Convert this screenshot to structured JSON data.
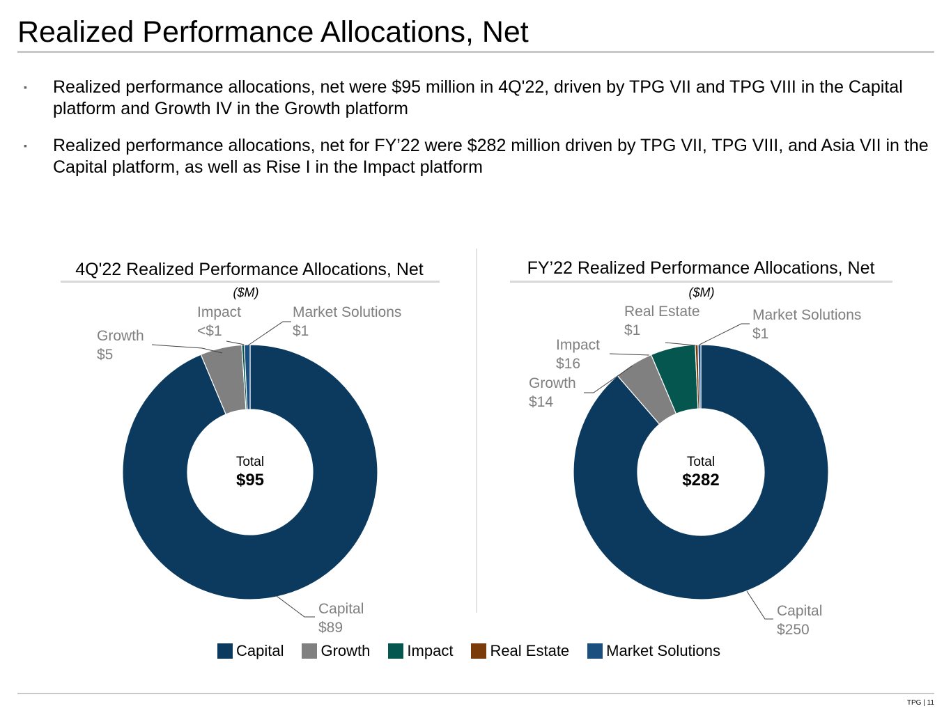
{
  "page": {
    "title": "Realized Performance Allocations, Net",
    "bullets": [
      "Realized performance allocations, net were $95 million in 4Q'22, driven by TPG VII and TPG VIII in the Capital platform and Growth IV in the Growth platform",
      "Realized performance allocations, net for FY’22 were $282 million driven by TPG VII, TPG VIII, and Asia VII in the Capital platform, as well as Rise I in the Impact platform"
    ],
    "bullet_marker": "▪",
    "footer": "TPG | 11"
  },
  "colors": {
    "Capital": "#0b3a5e",
    "Growth": "#808080",
    "Impact": "#05564f",
    "Real Estate": "#7b3a0a",
    "Market Solutions": "#1a4f80"
  },
  "legend": [
    "Capital",
    "Growth",
    "Impact",
    "Real Estate",
    "Market Solutions"
  ],
  "chart_data": [
    {
      "type": "pie",
      "variant": "donut",
      "title": "4Q'22 Realized Performance Allocations, Net",
      "unit": "($M)",
      "center_caption": "Total",
      "center_value": "$95",
      "start_angle_deg": 0,
      "direction": "clockwise",
      "slices": [
        {
          "name": "Capital",
          "value": 89,
          "label": "$89"
        },
        {
          "name": "Growth",
          "value": 5,
          "label": "$5"
        },
        {
          "name": "Impact",
          "value": 0.3,
          "label": "<$1"
        },
        {
          "name": "Market Solutions",
          "value": 0.7,
          "label": "$1"
        }
      ]
    },
    {
      "type": "pie",
      "variant": "donut",
      "title": "FY’22 Realized Performance Allocations, Net",
      "unit": "($M)",
      "center_caption": "Total",
      "center_value": "$282",
      "start_angle_deg": 0,
      "direction": "clockwise",
      "slices": [
        {
          "name": "Capital",
          "value": 250,
          "label": "$250"
        },
        {
          "name": "Growth",
          "value": 14,
          "label": "$14"
        },
        {
          "name": "Impact",
          "value": 16,
          "label": "$16"
        },
        {
          "name": "Real Estate",
          "value": 1,
          "label": "$1"
        },
        {
          "name": "Market Solutions",
          "value": 1,
          "label": "$1"
        }
      ]
    }
  ]
}
